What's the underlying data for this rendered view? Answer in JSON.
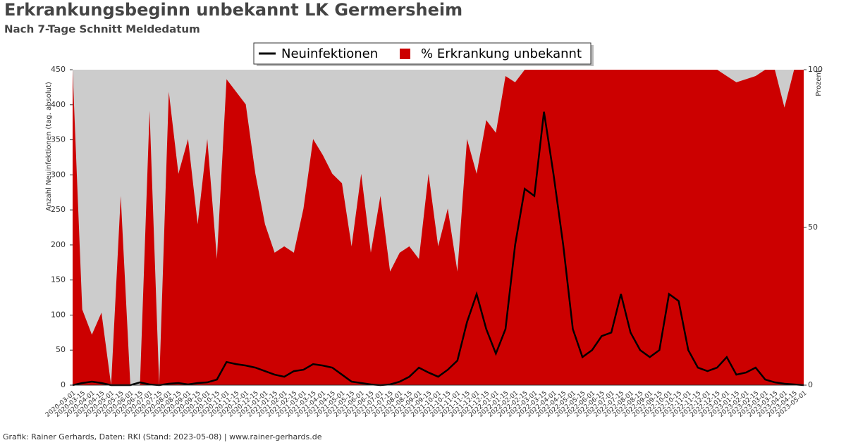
{
  "chart_data": {
    "type": "line-area",
    "title": "Erkrankungsbeginn unbekannt LK Germersheim",
    "subtitle": "Nach 7-Tage Schnitt Meldedatum",
    "footer": "Grafik: Rainer Gerhards, Daten: RKI (Stand: 2023-05-08) | www.rainer-gerhards.de",
    "y_label": "Anzahl Neuinfektionen (tag. absolut)",
    "y2_label": "Prozent",
    "categories": [
      "2020-03-01",
      "2020-03-15",
      "2020-04-01",
      "2020-04-15",
      "2020-05-01",
      "2020-05-15",
      "2020-06-01",
      "2020-06-15",
      "2020-07-01",
      "2020-07-15",
      "2020-08-01",
      "2020-08-15",
      "2020-09-01",
      "2020-09-15",
      "2020-10-01",
      "2020-10-15",
      "2020-11-01",
      "2020-11-15",
      "2020-12-01",
      "2020-12-15",
      "2021-01-01",
      "2021-01-15",
      "2021-02-01",
      "2021-02-15",
      "2021-03-01",
      "2021-03-15",
      "2021-04-01",
      "2021-04-15",
      "2021-05-01",
      "2021-05-15",
      "2021-06-01",
      "2021-06-15",
      "2021-07-01",
      "2021-07-15",
      "2021-08-01",
      "2021-08-15",
      "2021-09-01",
      "2021-09-15",
      "2021-10-01",
      "2021-10-15",
      "2021-11-01",
      "2021-11-15",
      "2021-12-01",
      "2021-12-15",
      "2022-01-01",
      "2022-01-15",
      "2022-02-01",
      "2022-02-15",
      "2022-03-01",
      "2022-03-15",
      "2022-04-01",
      "2022-04-15",
      "2022-05-01",
      "2022-05-15",
      "2022-06-01",
      "2022-06-15",
      "2022-07-01",
      "2022-07-15",
      "2022-08-01",
      "2022-08-15",
      "2022-09-01",
      "2022-09-15",
      "2022-10-01",
      "2022-10-15",
      "2022-11-01",
      "2022-11-15",
      "2022-12-01",
      "2022-12-15",
      "2023-01-01",
      "2023-01-15",
      "2023-02-01",
      "2023-02-15",
      "2023-03-01",
      "2023-03-15",
      "2023-04-01",
      "2023-04-15",
      "2023-05-01"
    ],
    "series": [
      {
        "name": "Neuinfektionen",
        "color": "#000000",
        "kind": "line",
        "values": [
          0,
          3,
          5,
          3,
          0,
          0,
          0,
          4,
          1,
          0,
          2,
          3,
          1,
          3,
          4,
          8,
          33,
          30,
          28,
          25,
          20,
          15,
          12,
          20,
          22,
          30,
          28,
          25,
          15,
          5,
          3,
          1,
          0,
          1,
          5,
          12,
          25,
          18,
          12,
          22,
          35,
          90,
          130,
          80,
          45,
          80,
          200,
          280,
          270,
          390,
          300,
          200,
          80,
          40,
          50,
          70,
          75,
          130,
          75,
          50,
          40,
          50,
          130,
          120,
          50,
          25,
          20,
          25,
          40,
          15,
          18,
          25,
          8,
          4,
          2,
          1,
          0
        ]
      },
      {
        "name": "% Erkrankung unbekannt",
        "color": "#cc0000",
        "kind": "area",
        "axis": "y2",
        "values": [
          100,
          24,
          16,
          23,
          0,
          60,
          0,
          0,
          87,
          0,
          93,
          67,
          78,
          51,
          78,
          40,
          97,
          93,
          89,
          67,
          51,
          42,
          44,
          42,
          56,
          78,
          73,
          67,
          64,
          44,
          67,
          42,
          60,
          36,
          42,
          44,
          40,
          67,
          44,
          56,
          36,
          78,
          67,
          84,
          80,
          98,
          96,
          100,
          100,
          100,
          100,
          100,
          100,
          100,
          100,
          100,
          100,
          100,
          100,
          100,
          100,
          100,
          100,
          100,
          100,
          100,
          100,
          100,
          98,
          96,
          97,
          98,
          100,
          100,
          88,
          100,
          100
        ]
      }
    ],
    "ylim": [
      0,
      450
    ],
    "yticks": [
      0,
      50,
      100,
      150,
      200,
      250,
      300,
      350,
      400,
      450
    ],
    "y2lim": [
      0,
      100
    ],
    "y2ticks": [
      0,
      50,
      100
    ],
    "plot_background": "#cccccc",
    "legend": "top"
  }
}
